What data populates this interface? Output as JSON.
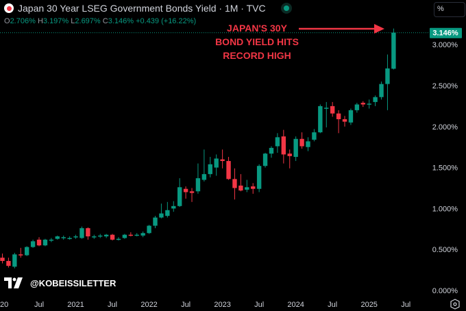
{
  "header": {
    "title": "Japan 30 Year LSEG Government Bonds Yield · 1M · TVC",
    "flag_icon": "japan-flag-icon",
    "status_icon": "market-open-dot-icon"
  },
  "ohlc": {
    "o_label": "O",
    "o": "2.706%",
    "h_label": "H",
    "h": "3.197%",
    "l_label": "L",
    "l": "2.697%",
    "c_label": "C",
    "c": "3.146%",
    "change": "+0.439 (+16.22%)"
  },
  "scale_button": "%",
  "annotation": {
    "line1": "JAPAN'S 30Y",
    "line2": "BOND YIELD HITS",
    "line3": "RECORD HIGH"
  },
  "watermark": "@KOBEISSILETTER",
  "colors": {
    "up": "#089981",
    "down": "#f23645",
    "annotation": "#f23645"
  },
  "chart_data": {
    "type": "candlestick",
    "title": "Japan 30 Year LSEG Government Bonds Yield",
    "interval": "1M",
    "last_price_label": "3.146%",
    "y_ticks": [
      "0.000%",
      "0.500%",
      "1.000%",
      "1.500%",
      "2.000%",
      "2.500%",
      "3.000%"
    ],
    "y_tick_values": [
      0,
      0.5,
      1,
      1.5,
      2,
      2.5,
      3
    ],
    "ylim": [
      0,
      3.2
    ],
    "x_ticks": [
      "20",
      "Jul",
      "2021",
      "Jul",
      "2022",
      "Jul",
      "2023",
      "Jul",
      "2024",
      "Jul",
      "2025",
      "Jul"
    ],
    "x_tick_month_index": [
      0,
      6,
      12,
      18,
      24,
      30,
      36,
      42,
      48,
      54,
      60,
      66
    ],
    "start": "2020-01",
    "candles": [
      [
        0.4,
        0.45,
        0.33,
        0.36
      ],
      [
        0.36,
        0.4,
        0.28,
        0.3
      ],
      [
        0.29,
        0.46,
        0.27,
        0.44
      ],
      [
        0.44,
        0.52,
        0.4,
        0.43
      ],
      [
        0.43,
        0.54,
        0.42,
        0.53
      ],
      [
        0.53,
        0.62,
        0.52,
        0.6
      ],
      [
        0.62,
        0.65,
        0.54,
        0.55
      ],
      [
        0.55,
        0.63,
        0.54,
        0.62
      ],
      [
        0.62,
        0.64,
        0.59,
        0.62
      ],
      [
        0.63,
        0.67,
        0.62,
        0.66
      ],
      [
        0.64,
        0.67,
        0.62,
        0.65
      ],
      [
        0.64,
        0.66,
        0.62,
        0.64
      ],
      [
        0.65,
        0.68,
        0.63,
        0.66
      ],
      [
        0.64,
        0.78,
        0.63,
        0.76
      ],
      [
        0.76,
        0.77,
        0.62,
        0.66
      ],
      [
        0.66,
        0.68,
        0.63,
        0.66
      ],
      [
        0.66,
        0.69,
        0.64,
        0.67
      ],
      [
        0.66,
        0.69,
        0.64,
        0.68
      ],
      [
        0.68,
        0.69,
        0.61,
        0.62
      ],
      [
        0.62,
        0.65,
        0.61,
        0.63
      ],
      [
        0.64,
        0.69,
        0.63,
        0.68
      ],
      [
        0.68,
        0.71,
        0.66,
        0.67
      ],
      [
        0.67,
        0.7,
        0.66,
        0.68
      ],
      [
        0.67,
        0.72,
        0.65,
        0.7
      ],
      [
        0.7,
        0.8,
        0.69,
        0.79
      ],
      [
        0.79,
        0.91,
        0.76,
        0.89
      ],
      [
        0.89,
        1.06,
        0.88,
        0.94
      ],
      [
        0.91,
        1.08,
        0.89,
        0.98
      ],
      [
        1.0,
        1.09,
        0.96,
        1.03
      ],
      [
        1.03,
        1.37,
        1.02,
        1.26
      ],
      [
        1.24,
        1.27,
        1.12,
        1.2
      ],
      [
        1.21,
        1.25,
        1.08,
        1.19
      ],
      [
        1.21,
        1.55,
        1.18,
        1.37
      ],
      [
        1.35,
        1.72,
        1.33,
        1.42
      ],
      [
        1.42,
        1.63,
        1.38,
        1.54
      ],
      [
        1.5,
        1.66,
        1.4,
        1.61
      ],
      [
        1.6,
        1.72,
        1.49,
        1.58
      ],
      [
        1.58,
        1.63,
        1.35,
        1.36
      ],
      [
        1.36,
        1.49,
        1.11,
        1.25
      ],
      [
        1.28,
        1.42,
        1.21,
        1.22
      ],
      [
        1.23,
        1.35,
        1.2,
        1.26
      ],
      [
        1.27,
        1.31,
        1.18,
        1.24
      ],
      [
        1.24,
        1.54,
        1.2,
        1.52
      ],
      [
        1.52,
        1.68,
        1.5,
        1.67
      ],
      [
        1.67,
        1.76,
        1.62,
        1.74
      ],
      [
        1.76,
        1.92,
        1.68,
        1.87
      ],
      [
        1.88,
        1.96,
        1.55,
        1.66
      ],
      [
        1.67,
        1.72,
        1.49,
        1.64
      ],
      [
        1.63,
        1.88,
        1.58,
        1.85
      ],
      [
        1.85,
        1.93,
        1.73,
        1.76
      ],
      [
        1.75,
        1.87,
        1.7,
        1.82
      ],
      [
        1.84,
        1.97,
        1.82,
        1.93
      ],
      [
        1.93,
        2.27,
        1.92,
        2.25
      ],
      [
        2.23,
        2.3,
        1.99,
        2.23
      ],
      [
        2.25,
        2.3,
        2.12,
        2.16
      ],
      [
        2.16,
        2.2,
        1.92,
        2.09
      ],
      [
        2.09,
        2.13,
        2.0,
        2.06
      ],
      [
        2.05,
        2.22,
        2.02,
        2.2
      ],
      [
        2.2,
        2.29,
        2.17,
        2.27
      ],
      [
        2.29,
        2.31,
        2.24,
        2.27
      ],
      [
        2.28,
        2.33,
        2.22,
        2.28
      ],
      [
        2.3,
        2.38,
        2.25,
        2.36
      ],
      [
        2.36,
        2.55,
        2.33,
        2.52
      ],
      [
        2.52,
        2.88,
        2.2,
        2.71
      ],
      [
        2.706,
        3.197,
        2.697,
        3.146
      ]
    ]
  }
}
